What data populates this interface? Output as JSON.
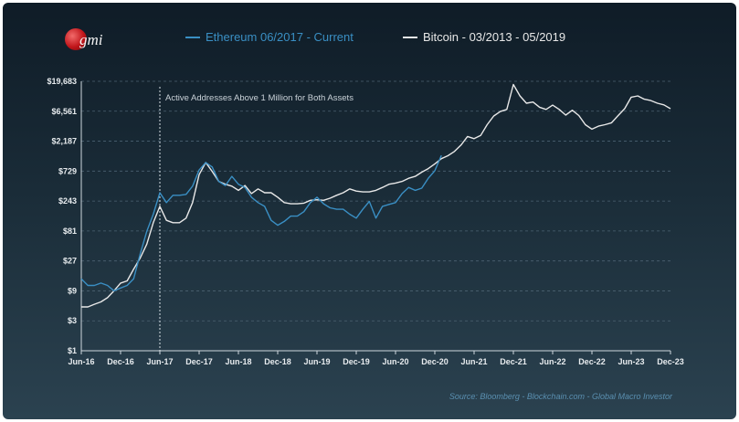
{
  "header": {
    "logo_text": "gmi",
    "source": "Source: Bloomberg - Blockchain.com - Global Macro Investor"
  },
  "colors": {
    "ethereum": "#3a8fc4",
    "bitcoin": "#e8e8e8",
    "grid": "#4c6272",
    "axis": "#cfd8de"
  },
  "chart_data": {
    "type": "line",
    "title": "",
    "xlabel": "",
    "ylabel": "",
    "y_scale": "log",
    "ylim": [
      1,
      19683
    ],
    "y_ticks": [
      1,
      3,
      9,
      27,
      81,
      243,
      729,
      2187,
      6561,
      19683
    ],
    "y_tick_labels": [
      "$1",
      "$3",
      "$9",
      "$27",
      "$81",
      "$243",
      "$729",
      "$2,187",
      "$6,561",
      "$19,683"
    ],
    "x_ticks": [
      "2016-06",
      "2016-12",
      "2017-06",
      "2017-12",
      "2018-06",
      "2018-12",
      "2019-06",
      "2019-12",
      "2020-06",
      "2020-12",
      "2021-06",
      "2021-12",
      "2022-06",
      "2022-12",
      "2023-06",
      "2023-12"
    ],
    "x_tick_labels": [
      "Jun-16",
      "Dec-16",
      "Jun-17",
      "Dec-17",
      "Jun-18",
      "Dec-18",
      "Jun-19",
      "Dec-19",
      "Jun-20",
      "Dec-20",
      "Jun-21",
      "Dec-21",
      "Jun-22",
      "Dec-22",
      "Jun-23",
      "Dec-23"
    ],
    "grid": true,
    "legend_position": "top",
    "annotation": {
      "x": "2017-06",
      "text": "Active  Addresses Above 1 Million for Both Assets"
    },
    "series": [
      {
        "name": "Ethereum 06/2017 - Current",
        "color": "#3a8fc4",
        "points": [
          [
            "2016-06",
            14
          ],
          [
            "2016-07",
            11
          ],
          [
            "2016-08",
            11
          ],
          [
            "2016-09",
            12
          ],
          [
            "2016-10",
            11
          ],
          [
            "2016-11",
            9
          ],
          [
            "2016-12",
            10
          ],
          [
            "2017-01",
            11
          ],
          [
            "2017-02",
            14
          ],
          [
            "2017-03",
            35
          ],
          [
            "2017-04",
            80
          ],
          [
            "2017-05",
            150
          ],
          [
            "2017-06",
            330
          ],
          [
            "2017-07",
            230
          ],
          [
            "2017-08",
            300
          ],
          [
            "2017-09",
            300
          ],
          [
            "2017-10",
            310
          ],
          [
            "2017-11",
            420
          ],
          [
            "2017-12",
            760
          ],
          [
            "2018-01",
            1000
          ],
          [
            "2018-02",
            850
          ],
          [
            "2018-03",
            500
          ],
          [
            "2018-04",
            430
          ],
          [
            "2018-05",
            600
          ],
          [
            "2018-06",
            450
          ],
          [
            "2018-07",
            400
          ],
          [
            "2018-08",
            280
          ],
          [
            "2018-09",
            230
          ],
          [
            "2018-10",
            200
          ],
          [
            "2018-11",
            120
          ],
          [
            "2018-12",
            100
          ],
          [
            "2019-01",
            115
          ],
          [
            "2019-02",
            140
          ],
          [
            "2019-03",
            140
          ],
          [
            "2019-04",
            165
          ],
          [
            "2019-05",
            230
          ],
          [
            "2019-06",
            280
          ],
          [
            "2019-07",
            220
          ],
          [
            "2019-08",
            190
          ],
          [
            "2019-09",
            180
          ],
          [
            "2019-10",
            180
          ],
          [
            "2019-11",
            150
          ],
          [
            "2019-12",
            130
          ],
          [
            "2020-01",
            180
          ],
          [
            "2020-02",
            240
          ],
          [
            "2020-03",
            130
          ],
          [
            "2020-04",
            200
          ],
          [
            "2020-05",
            215
          ],
          [
            "2020-06",
            230
          ],
          [
            "2020-07",
            320
          ],
          [
            "2020-08",
            400
          ],
          [
            "2020-09",
            360
          ],
          [
            "2020-10",
            390
          ],
          [
            "2020-11",
            560
          ],
          [
            "2020-12",
            740
          ],
          [
            "2021-01",
            1300
          ]
        ]
      },
      {
        "name": "Bitcoin - 03/2013 - 05/2019",
        "color": "#e8e8e8",
        "points": [
          [
            "2016-06",
            5
          ],
          [
            "2016-07",
            5
          ],
          [
            "2016-08",
            5.5
          ],
          [
            "2016-09",
            6
          ],
          [
            "2016-10",
            7
          ],
          [
            "2016-11",
            9
          ],
          [
            "2016-12",
            12
          ],
          [
            "2017-01",
            13
          ],
          [
            "2017-02",
            20
          ],
          [
            "2017-03",
            30
          ],
          [
            "2017-04",
            50
          ],
          [
            "2017-05",
            110
          ],
          [
            "2017-06",
            200
          ],
          [
            "2017-07",
            120
          ],
          [
            "2017-08",
            110
          ],
          [
            "2017-09",
            110
          ],
          [
            "2017-10",
            130
          ],
          [
            "2017-11",
            230
          ],
          [
            "2017-12",
            640
          ],
          [
            "2018-01",
            1000
          ],
          [
            "2018-02",
            720
          ],
          [
            "2018-03",
            500
          ],
          [
            "2018-04",
            450
          ],
          [
            "2018-05",
            420
          ],
          [
            "2018-06",
            360
          ],
          [
            "2018-07",
            430
          ],
          [
            "2018-08",
            320
          ],
          [
            "2018-09",
            380
          ],
          [
            "2018-10",
            330
          ],
          [
            "2018-11",
            330
          ],
          [
            "2018-12",
            280
          ],
          [
            "2019-01",
            230
          ],
          [
            "2019-02",
            220
          ],
          [
            "2019-03",
            220
          ],
          [
            "2019-04",
            225
          ],
          [
            "2019-05",
            250
          ],
          [
            "2019-06",
            255
          ],
          [
            "2019-07",
            250
          ],
          [
            "2019-08",
            270
          ],
          [
            "2019-09",
            300
          ],
          [
            "2019-10",
            330
          ],
          [
            "2019-11",
            380
          ],
          [
            "2019-12",
            350
          ],
          [
            "2020-01",
            340
          ],
          [
            "2020-02",
            340
          ],
          [
            "2020-03",
            360
          ],
          [
            "2020-04",
            400
          ],
          [
            "2020-05",
            450
          ],
          [
            "2020-06",
            470
          ],
          [
            "2020-07",
            500
          ],
          [
            "2020-08",
            560
          ],
          [
            "2020-09",
            600
          ],
          [
            "2020-10",
            700
          ],
          [
            "2020-11",
            800
          ],
          [
            "2020-12",
            950
          ],
          [
            "2021-01",
            1150
          ],
          [
            "2021-02",
            1280
          ],
          [
            "2021-03",
            1500
          ],
          [
            "2021-04",
            1900
          ],
          [
            "2021-05",
            2600
          ],
          [
            "2021-06",
            2400
          ],
          [
            "2021-07",
            2700
          ],
          [
            "2021-08",
            4000
          ],
          [
            "2021-09",
            5500
          ],
          [
            "2021-10",
            6500
          ],
          [
            "2021-11",
            7000
          ],
          [
            "2021-12",
            17500
          ],
          [
            "2022-01",
            11500
          ],
          [
            "2022-02",
            8800
          ],
          [
            "2022-03",
            9200
          ],
          [
            "2022-04",
            7600
          ],
          [
            "2022-05",
            7000
          ],
          [
            "2022-06",
            8200
          ],
          [
            "2022-07",
            7000
          ],
          [
            "2022-08",
            5700
          ],
          [
            "2022-09",
            6800
          ],
          [
            "2022-10",
            5600
          ],
          [
            "2022-11",
            4000
          ],
          [
            "2022-12",
            3400
          ],
          [
            "2023-01",
            3800
          ],
          [
            "2023-02",
            4000
          ],
          [
            "2023-03",
            4300
          ],
          [
            "2023-04",
            5600
          ],
          [
            "2023-05",
            7200
          ],
          [
            "2023-06",
            11000
          ],
          [
            "2023-07",
            11500
          ],
          [
            "2023-08",
            10200
          ],
          [
            "2023-09",
            9700
          ],
          [
            "2023-10",
            8800
          ],
          [
            "2023-11",
            8300
          ],
          [
            "2023-12",
            7200
          ]
        ]
      }
    ]
  }
}
